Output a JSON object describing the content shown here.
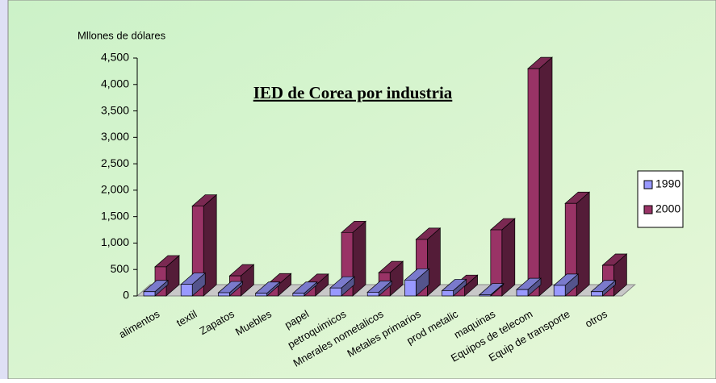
{
  "chart_data": {
    "type": "bar3d",
    "title": "IED de Corea por industria",
    "y_label": "Mllones de dólares",
    "categories": [
      "alimentos",
      "textil",
      "Zapatos",
      "Muebles",
      "papel",
      "petroquimicos",
      "Mnerales nometalicos",
      "Metales primarios",
      "prod metalic",
      "maquinas",
      "Equipos de telecom",
      "Equip de transporte",
      "otros"
    ],
    "series": [
      {
        "name": "1990",
        "color": "#9999ff",
        "values": [
          80,
          220,
          60,
          50,
          50,
          150,
          70,
          300,
          100,
          20,
          120,
          200,
          80
        ]
      },
      {
        "name": "2000",
        "color": "#993366",
        "values": [
          550,
          1700,
          380,
          210,
          200,
          1200,
          440,
          1070,
          180,
          1250,
          4300,
          1750,
          580
        ]
      }
    ],
    "ylim": [
      0,
      4500
    ],
    "yticks": [
      0,
      {
        "value": 500,
        "label": "500"
      },
      {
        "value": 1000,
        "label": "1,000"
      },
      {
        "value": 1500,
        "label": "1,500"
      },
      {
        "value": 2000,
        "label": "2,000"
      },
      {
        "value": 2500,
        "label": "2,500"
      },
      {
        "value": 3000,
        "label": "3,000"
      },
      {
        "value": 3500,
        "label": "3,500"
      },
      {
        "value": 4000,
        "label": "4,000"
      },
      {
        "value": 4500,
        "label": "4,500"
      }
    ],
    "legend": "right"
  }
}
